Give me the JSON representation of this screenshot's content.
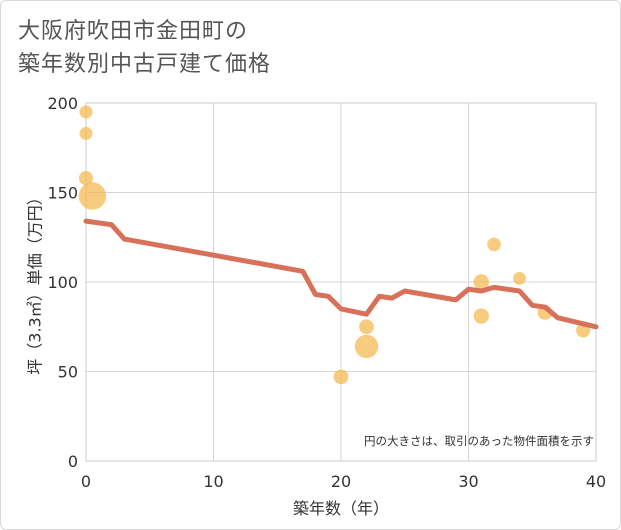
{
  "title_line1": "大阪府吹田市金田町の",
  "title_line2": "築年数別中古戸建て価格",
  "chart_data": {
    "type": "scatter",
    "title": "大阪府吹田市金田町の築年数別中古戸建て価格",
    "xlabel": "築年数（年）",
    "ylabel": "坪（3.3㎡）単価（万円）",
    "xlim": [
      0,
      40
    ],
    "ylim": [
      0,
      200
    ],
    "xticks": [
      0,
      10,
      20,
      30,
      40
    ],
    "yticks": [
      0,
      50,
      100,
      150,
      200
    ],
    "grid": true,
    "note": "円の大きさは、取引のあった物件面積を示す",
    "colors": {
      "bubble": "#f5b94d",
      "line": "#d9705a"
    },
    "bubbles": [
      {
        "x": 0,
        "y": 195,
        "size": 1
      },
      {
        "x": 0,
        "y": 183,
        "size": 1
      },
      {
        "x": 0,
        "y": 158,
        "size": 1.2
      },
      {
        "x": 0.5,
        "y": 148,
        "size": 3.8
      },
      {
        "x": 20,
        "y": 47,
        "size": 1.3
      },
      {
        "x": 22,
        "y": 75,
        "size": 1.3
      },
      {
        "x": 22,
        "y": 64,
        "size": 2.8
      },
      {
        "x": 31,
        "y": 100,
        "size": 1.4
      },
      {
        "x": 31,
        "y": 81,
        "size": 1.4
      },
      {
        "x": 32,
        "y": 121,
        "size": 1.1
      },
      {
        "x": 34,
        "y": 102,
        "size": 1
      },
      {
        "x": 36,
        "y": 83,
        "size": 1.3
      },
      {
        "x": 39,
        "y": 73,
        "size": 1.2
      }
    ],
    "trend": {
      "x": [
        0,
        2,
        3,
        17,
        18,
        19,
        20,
        22,
        23,
        24,
        25,
        29,
        30,
        31,
        32,
        34,
        35,
        36,
        37,
        40
      ],
      "y": [
        134,
        132,
        124,
        106,
        93,
        92,
        85,
        82,
        92,
        91,
        95,
        90,
        96,
        95,
        97,
        95,
        87,
        86,
        80,
        75
      ]
    }
  }
}
